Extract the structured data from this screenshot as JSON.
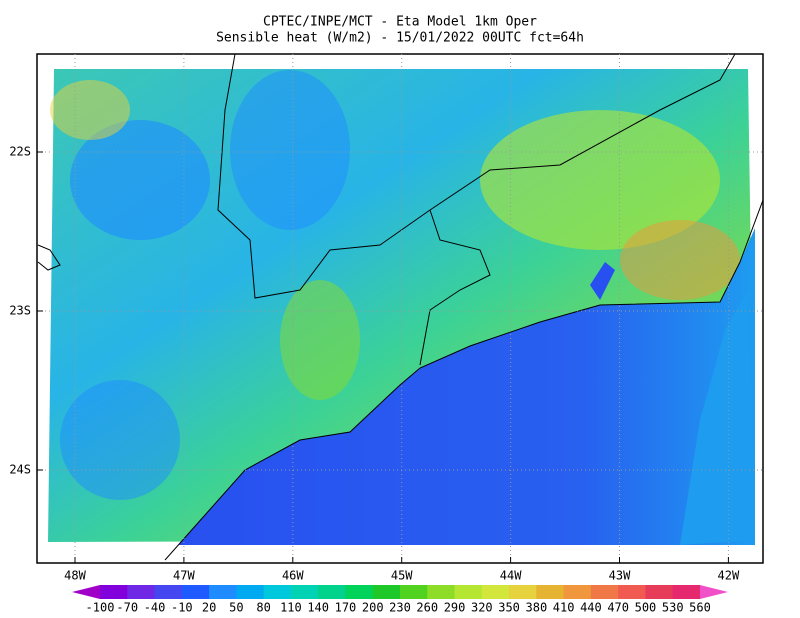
{
  "title": [
    "CPTEC/INPE/MCT -  Eta Model 1km Oper",
    "Sensible heat (W/m2) - 15/01/2022 00UTC fct=64h"
  ],
  "lat_labels": [
    "22S",
    "23S",
    "24S"
  ],
  "lon_labels": [
    "48W",
    "47W",
    "46W",
    "45W",
    "44W",
    "43W",
    "42W"
  ],
  "colorbar": {
    "labels": [
      -100,
      -70,
      -40,
      -10,
      20,
      50,
      80,
      110,
      140,
      170,
      200,
      230,
      260,
      290,
      320,
      350,
      380,
      410,
      440,
      470,
      500,
      530,
      560
    ],
    "colors": [
      "#a000c8",
      "#8200dc",
      "#6e28e6",
      "#4646f0",
      "#1e5aff",
      "#1e8cff",
      "#00aaf0",
      "#00c8dc",
      "#00d2b4",
      "#00d28c",
      "#00d25a",
      "#1ec828",
      "#50d21e",
      "#8cdc28",
      "#b4e632",
      "#d2e63c",
      "#e6d23c",
      "#e6b432",
      "#f0963c",
      "#f07846",
      "#f05a50",
      "#e63c5a",
      "#e6286e",
      "#f050c8"
    ]
  }
}
